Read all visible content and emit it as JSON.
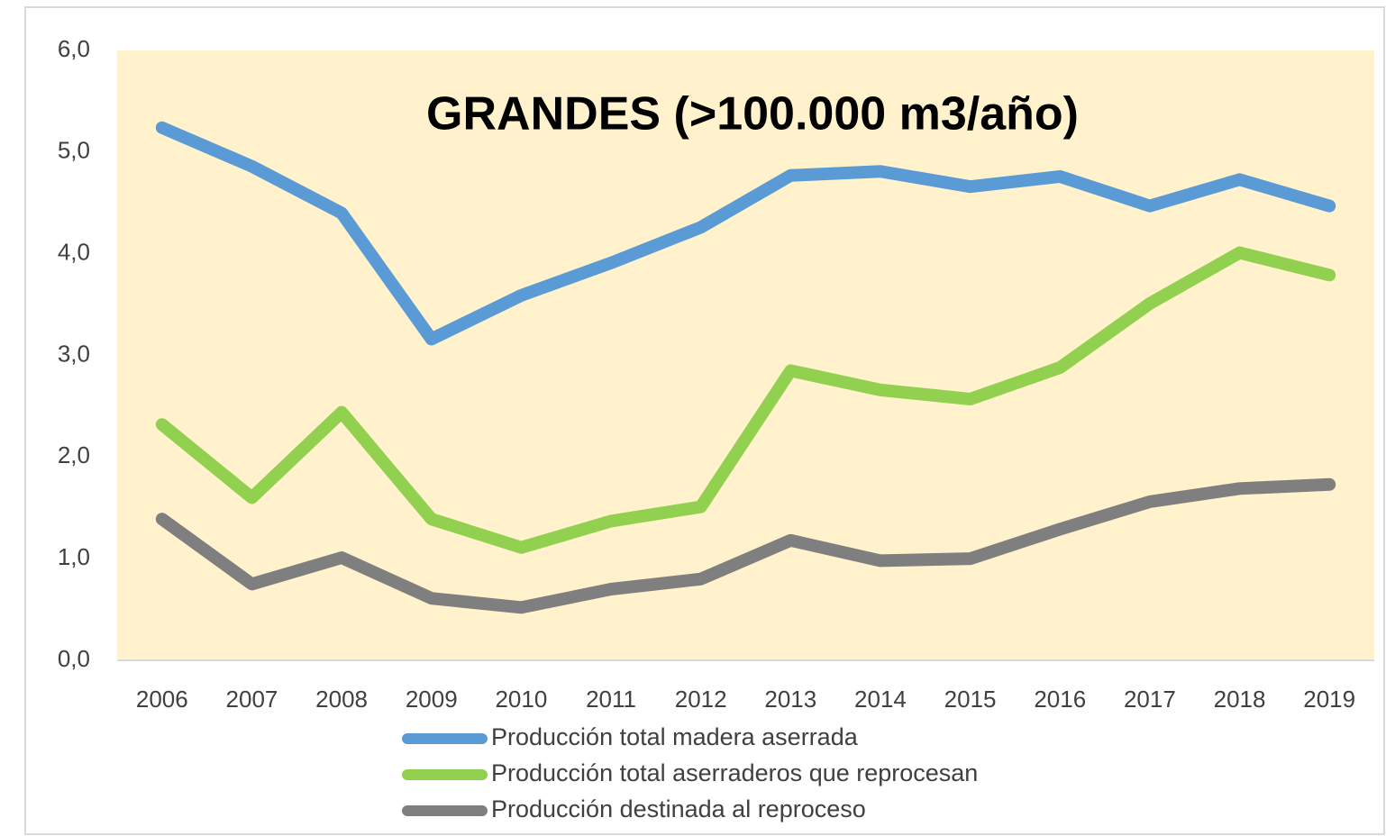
{
  "chart_data": {
    "type": "line",
    "title": "GRANDES (>100.000 m3/año)",
    "categories": [
      "2006",
      "2007",
      "2008",
      "2009",
      "2010",
      "2011",
      "2012",
      "2013",
      "2014",
      "2015",
      "2016",
      "2017",
      "2018",
      "2019"
    ],
    "series": [
      {
        "name": "Producción total madera aserrada",
        "color": "#5b9bd5",
        "values": [
          5.24,
          4.86,
          4.4,
          3.16,
          3.59,
          3.91,
          4.26,
          4.77,
          4.81,
          4.66,
          4.76,
          4.47,
          4.73,
          4.47
        ]
      },
      {
        "name": "Producción total aserraderos que reprocesan",
        "color": "#92d050",
        "values": [
          2.32,
          1.6,
          2.44,
          1.39,
          1.11,
          1.37,
          1.51,
          2.85,
          2.66,
          2.57,
          2.88,
          3.51,
          4.01,
          3.79
        ]
      },
      {
        "name": "Producción destinada al reproceso",
        "color": "#7f7f7f",
        "values": [
          1.39,
          0.75,
          1.01,
          0.61,
          0.52,
          0.7,
          0.8,
          1.18,
          0.98,
          1.0,
          1.29,
          1.56,
          1.69,
          1.73
        ]
      }
    ],
    "ylim": [
      0,
      6
    ],
    "yticks": [
      {
        "value": 0,
        "label": "0,0"
      },
      {
        "value": 1,
        "label": "1,0"
      },
      {
        "value": 2,
        "label": "2,0"
      },
      {
        "value": 3,
        "label": "3,0"
      },
      {
        "value": 4,
        "label": "4,0"
      },
      {
        "value": 5,
        "label": "5,0"
      },
      {
        "value": 6,
        "label": "6,0"
      }
    ],
    "plot_background": "#fff2cc"
  }
}
